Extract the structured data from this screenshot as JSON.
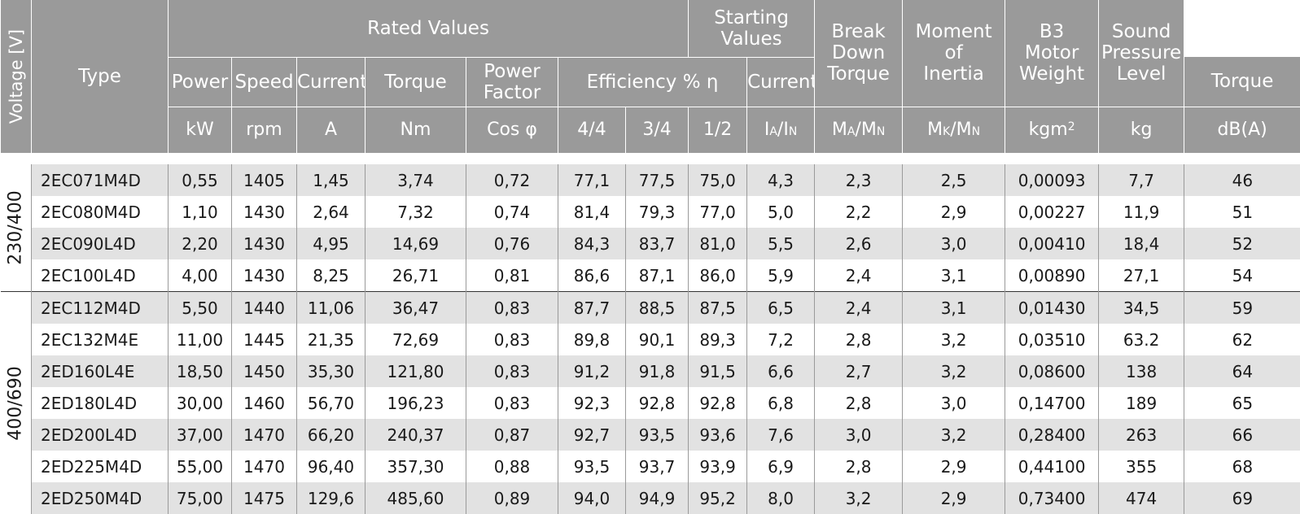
{
  "header": {
    "voltage_label": "Voltage [V]",
    "type_label": "Type",
    "rated_values": "Rated Values",
    "starting_values": [
      "Starting",
      "Values"
    ],
    "break_down_torque": [
      "Break",
      "Down",
      "Torque"
    ],
    "moment_of_inertia": [
      "Moment",
      "of",
      "Inertia"
    ],
    "b3_motor_weight": [
      "B3",
      "Motor",
      "Weight"
    ],
    "sound_pressure_level": [
      "Sound",
      "Pressure",
      "Level"
    ],
    "power": "Power",
    "speed": "Speed",
    "current": "Current",
    "torque": "Torque",
    "power_factor": [
      "Power",
      "Factor"
    ],
    "efficiency": "Efficiency % η",
    "start_current": "Current",
    "start_torque": "Torque",
    "units": {
      "power": "kW",
      "speed": "rpm",
      "current": "A",
      "torque": "Nm",
      "power_factor": "Cos φ",
      "eff_full": "4/4",
      "eff_three_quarter": "3/4",
      "eff_half": "1/2",
      "ia_main": "I",
      "ia_sub": "A",
      "ia_slash": "/I",
      "ia_sub2": "N",
      "ma_main": "M",
      "ma_sub": "A",
      "ma_slash": "/M",
      "ma_sub2": "N",
      "mk_main": "M",
      "mk_sub": "K",
      "mk_slash": "/M",
      "mk_sub2": "N",
      "inertia_main": "kgm",
      "inertia_sup": "2",
      "weight": "kg",
      "sound": "dB(A)"
    }
  },
  "groups": [
    {
      "voltage": "230/400",
      "rows": [
        [
          "2EC071M4D",
          "0,55",
          "1405",
          "1,45",
          "3,74",
          "0,72",
          "77,1",
          "77,5",
          "75,0",
          "4,3",
          "2,3",
          "2,5",
          "0,00093",
          "7,7",
          "46"
        ],
        [
          "2EC080M4D",
          "1,10",
          "1430",
          "2,64",
          "7,32",
          "0,74",
          "81,4",
          "79,3",
          "77,0",
          "5,0",
          "2,2",
          "2,9",
          "0,00227",
          "11,9",
          "51"
        ],
        [
          "2EC090L4D",
          "2,20",
          "1430",
          "4,95",
          "14,69",
          "0,76",
          "84,3",
          "83,7",
          "81,0",
          "5,5",
          "2,6",
          "3,0",
          "0,00410",
          "18,4",
          "52"
        ],
        [
          "2EC100L4D",
          "4,00",
          "1430",
          "8,25",
          "26,71",
          "0,81",
          "86,6",
          "87,1",
          "86,0",
          "5,9",
          "2,4",
          "3,1",
          "0,00890",
          "27,1",
          "54"
        ]
      ]
    },
    {
      "voltage": "400/690",
      "rows": [
        [
          "2EC112M4D",
          "5,50",
          "1440",
          "11,06",
          "36,47",
          "0,83",
          "87,7",
          "88,5",
          "87,5",
          "6,5",
          "2,4",
          "3,1",
          "0,01430",
          "34,5",
          "59"
        ],
        [
          "2EC132M4E",
          "11,00",
          "1445",
          "21,35",
          "72,69",
          "0,83",
          "89,8",
          "90,1",
          "89,3",
          "7,2",
          "2,8",
          "3,2",
          "0,03510",
          "63.2",
          "62"
        ],
        [
          "2ED160L4E",
          "18,50",
          "1450",
          "35,30",
          "121,80",
          "0,83",
          "91,2",
          "91,8",
          "91,5",
          "6,6",
          "2,7",
          "3,2",
          "0,08600",
          "138",
          "64"
        ],
        [
          "2ED180L4D",
          "30,00",
          "1460",
          "56,70",
          "196,23",
          "0,83",
          "92,3",
          "92,8",
          "92,8",
          "6,8",
          "2,8",
          "3,0",
          "0,14700",
          "189",
          "65"
        ],
        [
          "2ED200L4D",
          "37,00",
          "1470",
          "66,20",
          "240,37",
          "0,87",
          "92,7",
          "93,5",
          "93,6",
          "7,6",
          "3,0",
          "3,2",
          "0,28400",
          "263",
          "66"
        ],
        [
          "2ED225M4D",
          "55,00",
          "1470",
          "96,40",
          "357,30",
          "0,88",
          "93,5",
          "93,7",
          "93,9",
          "6,9",
          "2,8",
          "2,9",
          "0,44100",
          "355",
          "68"
        ],
        [
          "2ED250M4D",
          "75,00",
          "1475",
          "129,6",
          "485,60",
          "0,89",
          "94,0",
          "94,9",
          "95,2",
          "8,0",
          "3,2",
          "2,9",
          "0,73400",
          "474",
          "69"
        ]
      ]
    }
  ]
}
